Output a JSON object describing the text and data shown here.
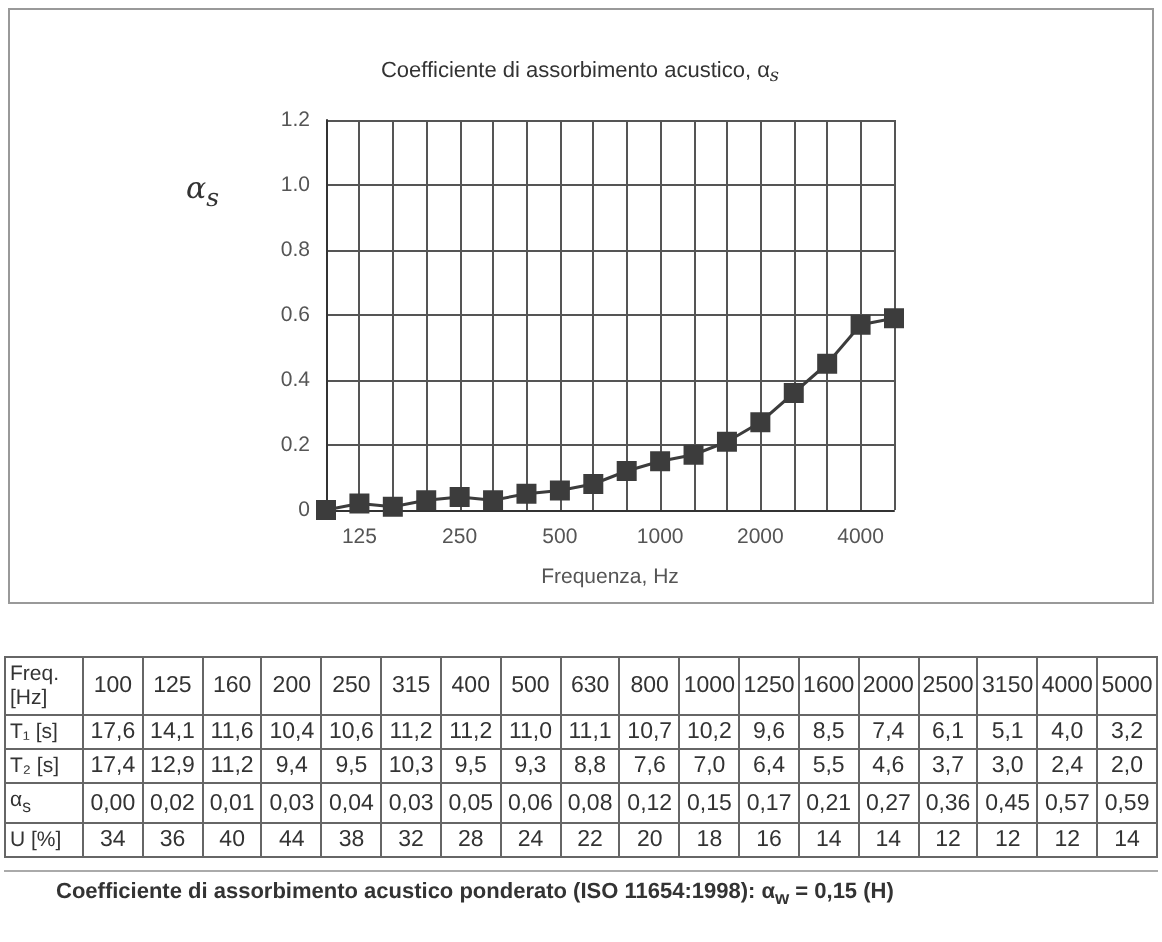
{
  "chart_data": [
    {
      "type": "line",
      "title": "Coefficiente di assorbimento acustico, α$_{s}$",
      "xlabel": "Frequenza, Hz",
      "ylabel": "α$_{s}$",
      "categories": [
        null,
        "125",
        null,
        null,
        "250",
        null,
        null,
        "500",
        null,
        null,
        "1000",
        null,
        null,
        "2000",
        null,
        null,
        "4000",
        null
      ],
      "series": [
        {
          "color": "#3c3c3c",
          "values": [
            0.0,
            0.02,
            0.01,
            0.03,
            0.04,
            0.03,
            0.05,
            0.06,
            0.08,
            0.12,
            0.15,
            0.17,
            0.21,
            0.27,
            0.36,
            0.45,
            0.57,
            0.59
          ]
        }
      ],
      "ylim": [
        0,
        1.2
      ],
      "yticks": [
        0,
        0.2,
        0.4,
        0.6,
        0.8,
        {
          "value": 1.0,
          "label": "1.0"
        },
        1.2
      ],
      "grid": true,
      "marker": "square",
      "line_style": "solid"
    },
    {
      "type": "other",
      "xlabel": "Freq. [Hz]",
      "categories": [
        "100",
        "125",
        "160",
        "200",
        "250",
        "315",
        "400",
        "500",
        "630",
        "800",
        "1000",
        "1250",
        "1600",
        "2000",
        "2500",
        "3150",
        "4000",
        "5000"
      ],
      "series": [
        {
          "name": "T₁ [s]",
          "values": [
            17.6,
            14.1,
            11.6,
            10.4,
            10.6,
            11.2,
            11.2,
            11.0,
            11.1,
            10.7,
            10.2,
            9.6,
            8.5,
            7.4,
            6.1,
            5.1,
            4.0,
            3.2
          ],
          "value_labels": [
            "17,6",
            "14,1",
            "11,6",
            "10,4",
            "10,6",
            "11,2",
            "11,2",
            "11,0",
            "11,1",
            "10,7",
            "10,2",
            "9,6",
            "8,5",
            "7,4",
            "6,1",
            "5,1",
            "4,0",
            "3,2"
          ]
        },
        {
          "name": "T₂ [s]",
          "values": [
            17.4,
            12.9,
            11.2,
            9.4,
            9.5,
            10.3,
            9.5,
            9.3,
            8.8,
            7.6,
            7.0,
            6.4,
            5.5,
            4.6,
            3.7,
            3.0,
            2.4,
            2.0
          ],
          "value_labels": [
            "17,4",
            "12,9",
            "11,2",
            "9,4",
            "9,5",
            "10,3",
            "9,5",
            "9,3",
            "8,8",
            "7,6",
            "7,0",
            "6,4",
            "5,5",
            "4,6",
            "3,7",
            "3,0",
            "2,4",
            "2,0"
          ]
        },
        {
          "name": "α$_{s}$",
          "values": [
            0.0,
            0.02,
            0.01,
            0.03,
            0.04,
            0.03,
            0.05,
            0.06,
            0.08,
            0.12,
            0.15,
            0.17,
            0.21,
            0.27,
            0.36,
            0.45,
            0.57,
            0.59
          ],
          "value_labels": [
            "0,00",
            "0,02",
            "0,01",
            "0,03",
            "0,04",
            "0,03",
            "0,05",
            "0,06",
            "0,08",
            "0,12",
            "0,15",
            "0,17",
            "0,21",
            "0,27",
            "0,36",
            "0,45",
            "0,57",
            "0,59"
          ]
        },
        {
          "name": "U [%]",
          "values": [
            34,
            36,
            40,
            44,
            38,
            32,
            28,
            24,
            22,
            20,
            18,
            16,
            14,
            14,
            12,
            12,
            12,
            14
          ],
          "value_labels": [
            "34",
            "36",
            "40",
            "44",
            "38",
            "32",
            "28",
            "24",
            "22",
            "20",
            "18",
            "16",
            "14",
            "14",
            "12",
            "12",
            "12",
            "14"
          ]
        }
      ],
      "annotations": [
        "Coefficiente di assorbimento acustico ponderato (ISO 11654:1998):   α$_{w}$ = 0,15 (H)"
      ]
    }
  ]
}
